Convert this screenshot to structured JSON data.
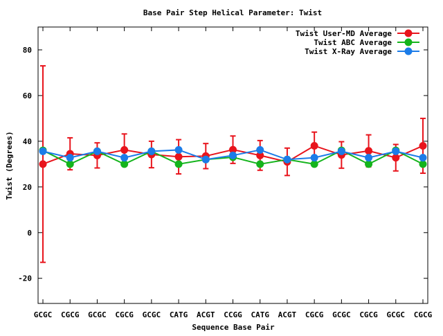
{
  "chart_data": {
    "type": "line",
    "title": "Base Pair Step Helical Parameter: Twist",
    "xlabel": "Sequence Base Pair",
    "ylabel": "Twist (Degrees)",
    "ylim": [
      -31,
      90
    ],
    "yticks": [
      -20,
      0,
      20,
      40,
      60,
      80
    ],
    "categories": [
      "GCGC",
      "CGCG",
      "GCGC",
      "CGCG",
      "GCGC",
      "CATG",
      "ACGT",
      "CCGG",
      "CATG",
      "ACGT",
      "CGCG",
      "GCGC",
      "CGCG",
      "GCGC",
      "CGCG"
    ],
    "legend_position": "top-right",
    "grid": false,
    "series": [
      {
        "name": "Twist User-MD Average",
        "color": "#e8141c",
        "values": [
          30.0,
          34.5,
          33.8,
          36.2,
          34.2,
          33.2,
          33.5,
          36.3,
          33.8,
          31.0,
          38.0,
          34.0,
          35.8,
          32.8,
          38.0
        ],
        "errors": [
          43.0,
          7.0,
          5.5,
          7.0,
          5.8,
          7.5,
          5.5,
          6.0,
          6.5,
          6.0,
          6.0,
          5.8,
          7.0,
          5.8,
          12.0
        ]
      },
      {
        "name": "Twist ABC Average",
        "color": "#14b41c",
        "values": [
          36.0,
          30.0,
          35.6,
          30.0,
          35.6,
          30.0,
          32.0,
          33.0,
          30.0,
          32.0,
          30.0,
          36.0,
          30.0,
          36.0,
          30.0
        ]
      },
      {
        "name": "Twist X-Ray Average",
        "color": "#1c7ce8",
        "values": [
          35.6,
          32.8,
          35.6,
          32.8,
          35.6,
          36.2,
          32.0,
          33.8,
          36.2,
          32.0,
          32.8,
          35.6,
          32.8,
          35.6,
          32.8
        ]
      }
    ]
  }
}
